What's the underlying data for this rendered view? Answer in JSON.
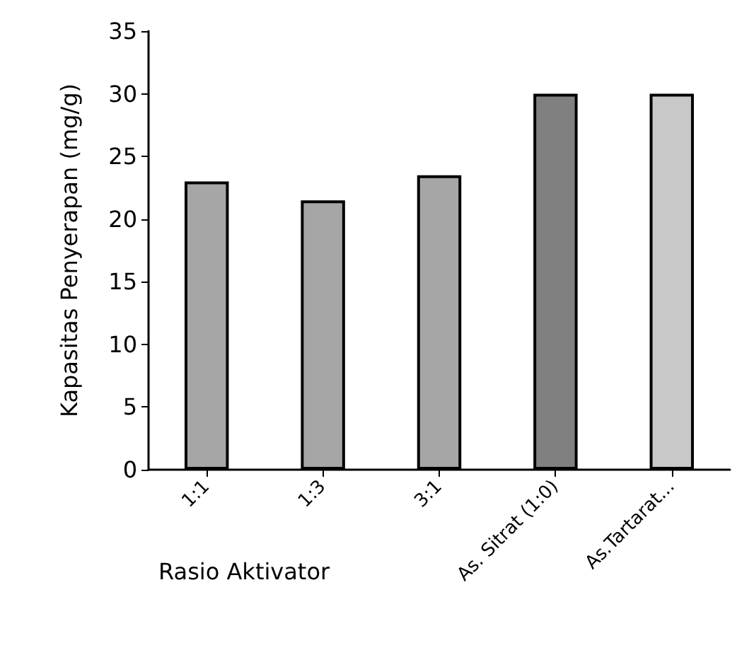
{
  "chart_data": {
    "type": "bar",
    "xlabel": "Rasio Aktivator",
    "ylabel": "Kapasitas Penyerapan (mg/g)",
    "categories": [
      "1:1",
      "1:3",
      "3:1",
      "As. Sitrat (1:0)",
      "As.Tartarat..."
    ],
    "values": [
      23,
      21.5,
      23.5,
      30,
      30
    ],
    "colors": [
      "#a6a6a6",
      "#a6a6a6",
      "#a6a6a6",
      "#808080",
      "#c8c8c8"
    ],
    "ylim": [
      0,
      35
    ],
    "yticks": [
      0,
      5,
      10,
      15,
      20,
      25,
      30,
      35
    ],
    "grid": false
  }
}
